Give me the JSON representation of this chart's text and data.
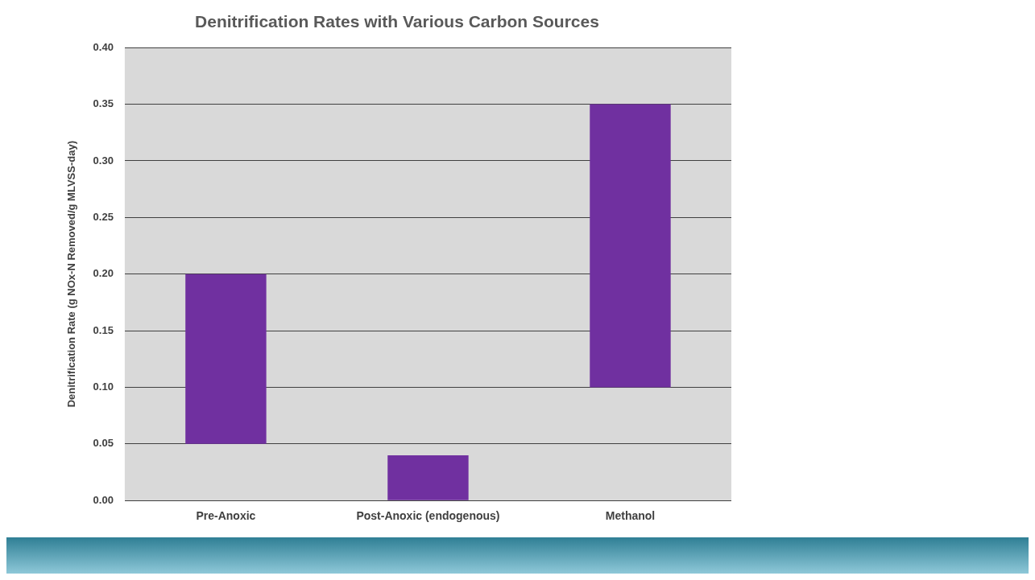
{
  "chart_data": {
    "type": "bar",
    "title": "Denitrification Rates with Various Carbon Sources",
    "ylabel": "Denitrification Rate (g NOx-N Removed/g MLVSS-day)",
    "categories": [
      "Pre-Anoxic",
      "Post-Anoxic (endogenous)",
      "Methanol"
    ],
    "values": [
      0.15,
      0.04,
      0.25
    ],
    "base": [
      0.05,
      0,
      0.1
    ],
    "color": "#7030a0",
    "ylim": [
      0,
      0.4
    ],
    "yticks": [
      {
        "value": 0,
        "label": "0.00"
      },
      {
        "value": 0.05,
        "label": "0.05"
      },
      {
        "value": 0.1,
        "label": "0.10"
      },
      {
        "value": 0.15,
        "label": "0.15"
      },
      {
        "value": 0.2,
        "label": "0.20"
      },
      {
        "value": 0.25,
        "label": "0.25"
      },
      {
        "value": 0.3,
        "label": "0.30"
      },
      {
        "value": 0.35,
        "label": "0.35"
      },
      {
        "value": 0.4,
        "label": "0.40"
      }
    ],
    "grid": "y",
    "legend": false
  }
}
